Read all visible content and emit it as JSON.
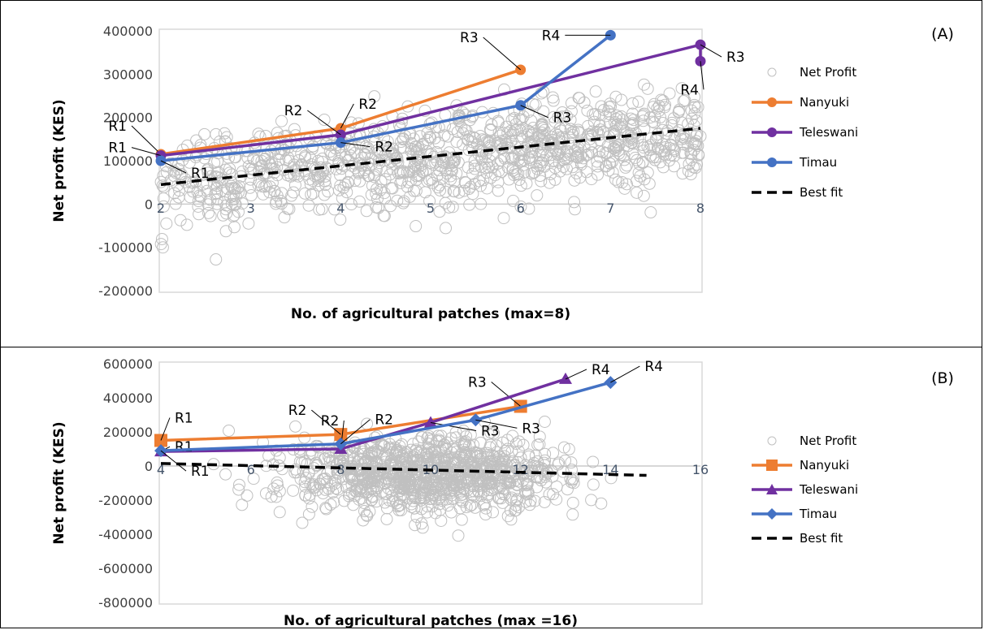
{
  "chart_data": [
    {
      "type": "scatter",
      "panel_label": "(A)",
      "xlabel": "No. of agricultural patches (max=8)",
      "ylabel": "Net profit (KES)",
      "xlim": [
        2,
        8
      ],
      "ylim": [
        -200000,
        400000
      ],
      "xticks": [
        2,
        3,
        4,
        5,
        6,
        7,
        8
      ],
      "yticks": [
        -200000,
        -100000,
        0,
        100000,
        200000,
        300000,
        400000
      ],
      "grid": false,
      "legend_position": "right",
      "series": [
        {
          "name": "Net Profit",
          "kind": "scatter",
          "marker": "open-circle",
          "color": "#bfbfbf"
        },
        {
          "name": "Nanyuki",
          "kind": "line",
          "marker": "circle",
          "color": "#ed7d31",
          "x": [
            2,
            4,
            6
          ],
          "y": [
            115000,
            175000,
            310000
          ],
          "labels": [
            "R1",
            "R2",
            "R3"
          ]
        },
        {
          "name": "Teleswani",
          "kind": "line",
          "marker": "circle",
          "color": "#7030a0",
          "x": [
            2,
            4,
            8,
            8
          ],
          "y": [
            112000,
            160000,
            368000,
            330000
          ],
          "labels": [
            "R1",
            "R2",
            "R3",
            "R4"
          ]
        },
        {
          "name": "Timau",
          "kind": "line",
          "marker": "circle",
          "color": "#4472c4",
          "x": [
            2,
            4,
            6,
            7
          ],
          "y": [
            100000,
            142000,
            228000,
            390000
          ],
          "labels": [
            "R1",
            "R2",
            "R3",
            "R4"
          ]
        },
        {
          "name": "Best fit",
          "kind": "line",
          "style": "dashed",
          "color": "#000000",
          "x": [
            2,
            8
          ],
          "y": [
            45000,
            175000
          ]
        }
      ]
    },
    {
      "type": "scatter",
      "panel_label": "(B)",
      "xlabel": "No. of agricultural patches (max =16)",
      "ylabel": "Net profit (KES)",
      "xlim": [
        4,
        16
      ],
      "ylim": [
        -800000,
        600000
      ],
      "xticks": [
        4,
        6,
        8,
        10,
        12,
        14,
        16
      ],
      "yticks": [
        -800000,
        -600000,
        -400000,
        -200000,
        0,
        200000,
        400000,
        600000
      ],
      "grid": false,
      "legend_position": "right",
      "series": [
        {
          "name": "Net Profit",
          "kind": "scatter",
          "marker": "open-circle",
          "color": "#bfbfbf"
        },
        {
          "name": "Nanyuki",
          "kind": "line",
          "marker": "square",
          "color": "#ed7d31",
          "x": [
            4,
            8,
            12
          ],
          "y": [
            150000,
            185000,
            350000
          ],
          "labels": [
            "R1",
            "R2",
            "R3"
          ]
        },
        {
          "name": "Teleswani",
          "kind": "line",
          "marker": "triangle",
          "color": "#7030a0",
          "x": [
            4,
            8,
            10,
            13
          ],
          "y": [
            85000,
            100000,
            255000,
            510000
          ],
          "labels": [
            "R1",
            "R2",
            "R3",
            "R4"
          ]
        },
        {
          "name": "Timau",
          "kind": "line",
          "marker": "diamond",
          "color": "#4472c4",
          "x": [
            4,
            8,
            11,
            14
          ],
          "y": [
            90000,
            130000,
            270000,
            490000
          ],
          "labels": [
            "R1",
            "R2",
            "R3",
            "R4"
          ]
        },
        {
          "name": "Best fit",
          "kind": "line",
          "style": "dashed",
          "color": "#000000",
          "x": [
            4,
            14.8
          ],
          "y": [
            15000,
            -55000
          ]
        }
      ]
    }
  ]
}
